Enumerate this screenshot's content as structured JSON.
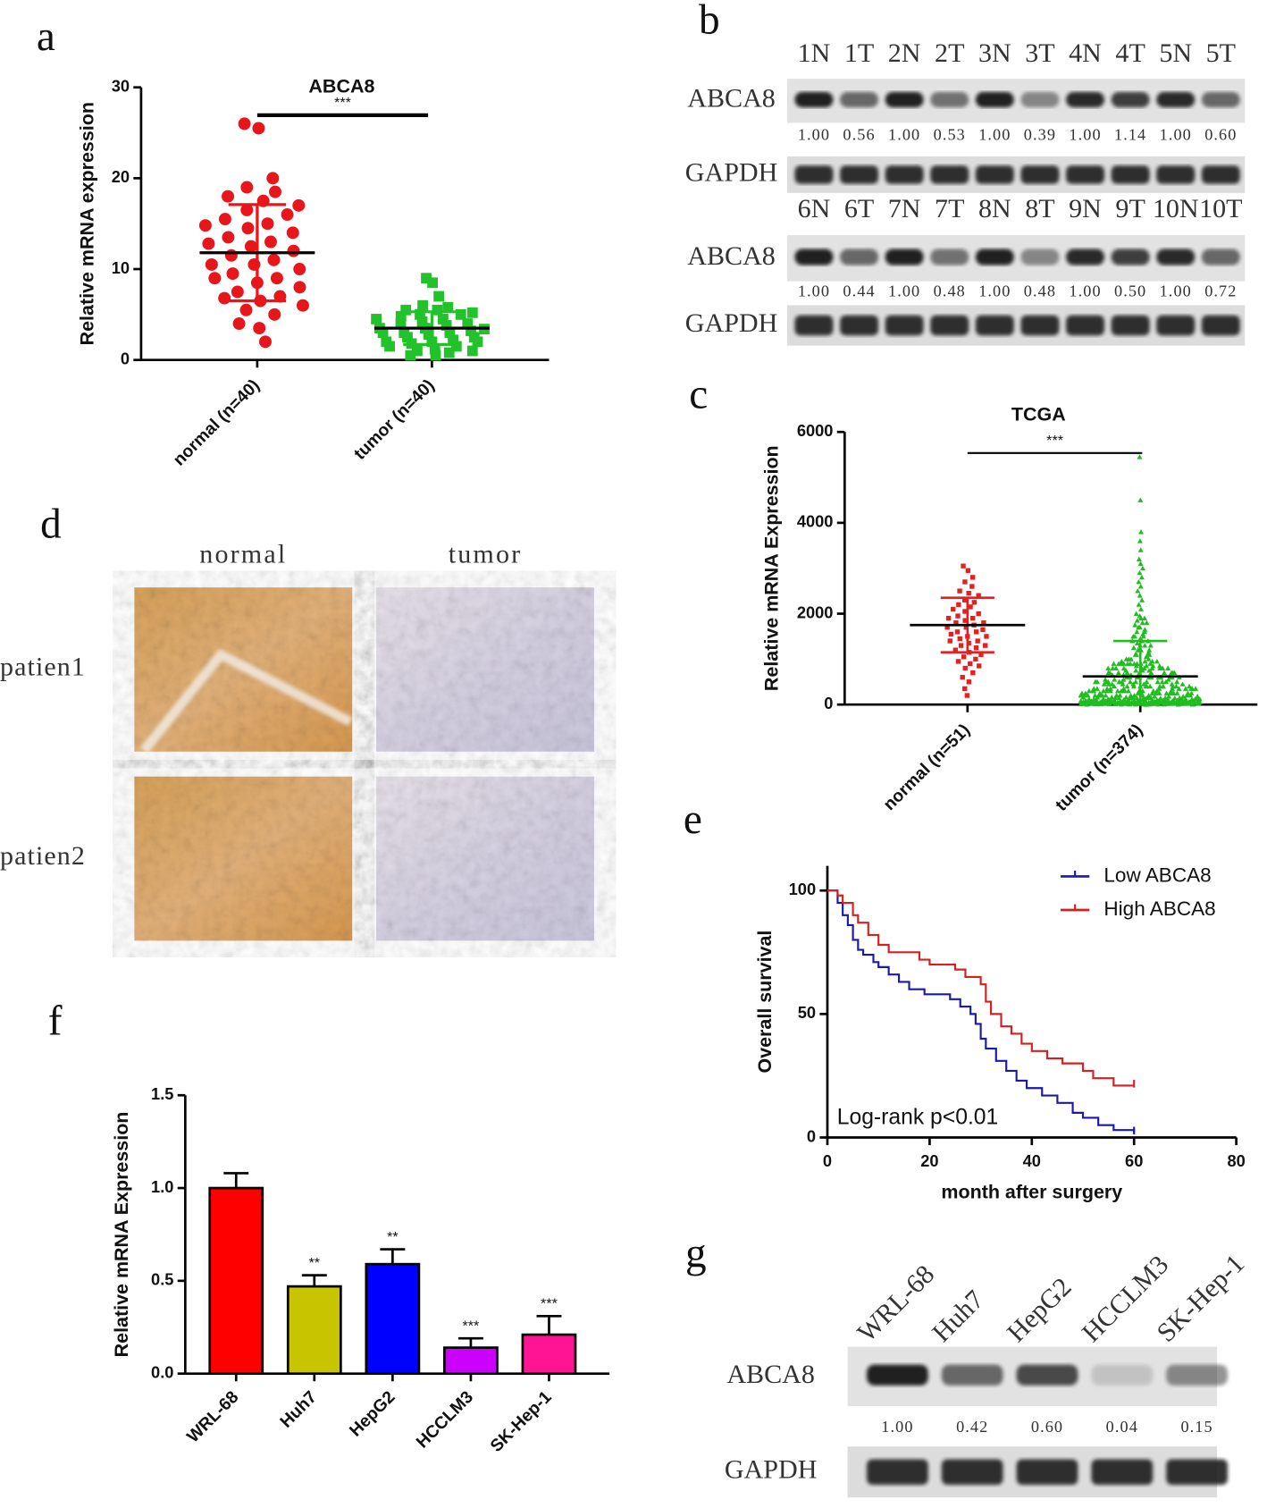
{
  "chart_data": [
    {
      "type": "dotplot",
      "panel_label": "a",
      "title": "ABCA8",
      "significance": "***",
      "ylabel": "Relative mRNA expression",
      "ylim": [
        0,
        30
      ],
      "yticks": [
        0,
        10,
        20,
        30
      ],
      "groups": [
        {
          "name": "normal (n=40)",
          "color": "#e8161b",
          "marker": "circle",
          "mean": 11.8,
          "sd": 5.3,
          "values": [
            26,
            25.5,
            20,
            19,
            18.5,
            18,
            17.5,
            17,
            16.5,
            16,
            15.5,
            15,
            14.8,
            14.5,
            14,
            13.5,
            13,
            12.8,
            12.5,
            12,
            11.5,
            11,
            10.5,
            10.5,
            10,
            9.5,
            9,
            9,
            8.5,
            8,
            7.5,
            7,
            6.8,
            6.5,
            6,
            5.5,
            5,
            4,
            3.5,
            2
          ]
        },
        {
          "name": "tumor (n=40)",
          "color": "#22c32a",
          "marker": "square",
          "mean": 3.5,
          "sd": 1.8,
          "values": [
            9,
            8.5,
            7,
            6,
            5.8,
            5.5,
            5.5,
            5.2,
            5,
            5,
            4.8,
            4.5,
            4.5,
            4.2,
            4,
            4,
            3.8,
            3.5,
            3.5,
            3.2,
            3,
            3,
            3,
            2.8,
            2.5,
            2.5,
            2.2,
            2,
            2,
            2,
            1.8,
            1.5,
            1.5,
            1.2,
            1,
            1,
            0.8,
            0.5,
            0.5,
            3.4
          ]
        }
      ]
    },
    {
      "type": "dotplot",
      "panel_label": "c",
      "title": "TCGA",
      "significance": "***",
      "ylabel": "Relative  mRNA Expression",
      "ylim": [
        0,
        6000
      ],
      "yticks": [
        0,
        2000,
        4000,
        6000
      ],
      "groups": [
        {
          "name": "normal (n=51)",
          "color": "#e62020",
          "marker": "square",
          "mean": 1750,
          "sd": 600,
          "values": [
            3050,
            2950,
            2800,
            2700,
            2600,
            2500,
            2450,
            2400,
            2300,
            2250,
            2200,
            2150,
            2100,
            2050,
            2000,
            1950,
            1900,
            1900,
            1850,
            1800,
            1800,
            1750,
            1700,
            1700,
            1650,
            1600,
            1600,
            1550,
            1500,
            1500,
            1450,
            1400,
            1400,
            1350,
            1300,
            1300,
            1250,
            1200,
            1150,
            1100,
            1050,
            1000,
            950,
            900,
            850,
            800,
            700,
            600,
            500,
            350,
            200
          ]
        },
        {
          "name": "tumor (n=374)",
          "color": "#1fbd1f",
          "marker": "triangle",
          "mean": 620,
          "sd": 780,
          "values": [
            5450,
            4500,
            3800,
            3600,
            3400,
            3200,
            3100,
            3000,
            2900,
            2800,
            2700,
            2600,
            2500,
            2400,
            2300,
            2200,
            2100,
            2000,
            1950,
            1900,
            1850,
            1800,
            1750,
            1700,
            1650,
            1600,
            1550,
            1500,
            1450,
            1400,
            1350,
            1300,
            1250,
            1200,
            1150,
            1100,
            1050,
            1000,
            1900,
            1800,
            1700,
            1600,
            1500,
            1400,
            1300,
            1200,
            1100,
            1000,
            950,
            900,
            850,
            800,
            750,
            700,
            650,
            600,
            550,
            500,
            1500,
            1400,
            1300,
            1200,
            1100,
            1000,
            900,
            800,
            700,
            600,
            500,
            450,
            400,
            350,
            300,
            250,
            200,
            150,
            100,
            50,
            950,
            900,
            850,
            800,
            750,
            700,
            650,
            600,
            550,
            500,
            450,
            400,
            350,
            300,
            250,
            200,
            150,
            100,
            50,
            20,
            950,
            900,
            850,
            800,
            750,
            700,
            650,
            600,
            550,
            500,
            450,
            400,
            350,
            300,
            250,
            200,
            150,
            100,
            50,
            20,
            950,
            900,
            850,
            800,
            750,
            700,
            650,
            600,
            550,
            500,
            450,
            400,
            350,
            300,
            250,
            200,
            150,
            100,
            50,
            20,
            900,
            800,
            700,
            600,
            500,
            450,
            400,
            350,
            300,
            250,
            200,
            180,
            160,
            140,
            120,
            100,
            80,
            60,
            40,
            20,
            900,
            800,
            700,
            600,
            500,
            450,
            400,
            350,
            300,
            250,
            200,
            180,
            160,
            140,
            120,
            100,
            80,
            60,
            40,
            20,
            900,
            800,
            700,
            600,
            500,
            450,
            400,
            350,
            300,
            250,
            200,
            180,
            160,
            140,
            120,
            100,
            80,
            60,
            40,
            20,
            900,
            800,
            700,
            600,
            500,
            450,
            400,
            350,
            300,
            250,
            200,
            180,
            160,
            140,
            120,
            100,
            80,
            60,
            40,
            20,
            600,
            500,
            400,
            350,
            300,
            250,
            200,
            150,
            120,
            100,
            90,
            80,
            70,
            60,
            50,
            40,
            30,
            20,
            10,
            5,
            600,
            500,
            400,
            350,
            300,
            250,
            200,
            150,
            120,
            100,
            90,
            80,
            70,
            60,
            50,
            40,
            30,
            20,
            10,
            5,
            600,
            500,
            400,
            350,
            300,
            250,
            200,
            150,
            120,
            100,
            90,
            80,
            70,
            60,
            50,
            40,
            30,
            20,
            10,
            5,
            600,
            500,
            400,
            350,
            300,
            250,
            200,
            150,
            120,
            100,
            90,
            80,
            70,
            60,
            50,
            40,
            30,
            20,
            10,
            5,
            300,
            250,
            200,
            150,
            120,
            100,
            80,
            70,
            60,
            50,
            45,
            40,
            35,
            30,
            25,
            20,
            15,
            10,
            5,
            2,
            300,
            250,
            200,
            150,
            120,
            100,
            80,
            70,
            60,
            50,
            45,
            40,
            35,
            30,
            25,
            20,
            15,
            10,
            5,
            2,
            300,
            250,
            200,
            150,
            120,
            100,
            80,
            70,
            60,
            50,
            45,
            40,
            35,
            30,
            25,
            20,
            15,
            10,
            5,
            2,
            1200,
            1100,
            1000,
            900,
            800,
            700,
            600,
            500,
            400,
            300,
            200,
            100,
            50,
            30,
            10,
            0
          ]
        }
      ]
    },
    {
      "type": "line",
      "panel_label": "e",
      "xlabel": "month after surgery",
      "ylabel": "Overall survival",
      "annotation": "Log-rank p<0.01",
      "legend": "top-right",
      "xlim": [
        0,
        80
      ],
      "xticks": [
        0,
        20,
        40,
        60,
        80
      ],
      "ylim": [
        0,
        110
      ],
      "yticks": [
        0,
        50,
        100
      ],
      "series": [
        {
          "name": "Low ABCA8",
          "color": "#1a1aa8",
          "x": [
            0,
            2,
            2,
            3,
            3,
            4,
            4,
            5,
            5,
            6,
            6,
            7,
            7,
            9,
            9,
            10,
            10,
            12,
            12,
            14,
            14,
            16,
            16,
            19,
            19,
            24,
            24,
            26,
            26,
            28,
            28,
            29,
            29,
            30,
            30,
            31,
            31,
            33,
            33,
            35,
            35,
            37,
            37,
            39,
            39,
            42,
            42,
            45,
            45,
            48,
            48,
            50,
            50,
            53,
            53,
            56,
            56,
            60,
            60
          ],
          "values": [
            100,
            100,
            95,
            95,
            90,
            90,
            86,
            86,
            80,
            80,
            76,
            76,
            74,
            74,
            71,
            71,
            69,
            69,
            66,
            66,
            63,
            63,
            60,
            60,
            58,
            58,
            56,
            56,
            53,
            53,
            50,
            50,
            46,
            46,
            40,
            40,
            36,
            36,
            31,
            31,
            27,
            27,
            23,
            23,
            20,
            20,
            17,
            17,
            14,
            14,
            10,
            10,
            8,
            8,
            5,
            5,
            3,
            3,
            2
          ]
        },
        {
          "name": "High ABCA8",
          "color": "#d42020",
          "x": [
            0,
            2,
            2,
            3,
            3,
            5,
            5,
            6,
            6,
            8,
            8,
            10,
            10,
            12,
            12,
            18,
            18,
            20,
            20,
            25,
            25,
            27,
            27,
            30,
            30,
            31,
            31,
            32,
            32,
            34,
            34,
            36,
            36,
            38,
            38,
            40,
            40,
            43,
            43,
            46,
            46,
            50,
            50,
            52,
            52,
            56,
            56,
            60
          ],
          "values": [
            100,
            100,
            98,
            98,
            95,
            95,
            90,
            90,
            87,
            87,
            82,
            82,
            78,
            78,
            75,
            75,
            72,
            72,
            70,
            70,
            68,
            68,
            65,
            65,
            62,
            62,
            55,
            55,
            50,
            50,
            45,
            45,
            42,
            42,
            38,
            38,
            35,
            35,
            32,
            32,
            30,
            30,
            27,
            27,
            24,
            24,
            21,
            21
          ]
        }
      ]
    },
    {
      "type": "bar",
      "panel_label": "f",
      "ylabel": "Relative mRNA Expression",
      "ylim": [
        0,
        1.5
      ],
      "yticks": [
        {
          "value": 0,
          "label": "0.0"
        },
        0.5,
        {
          "value": 1,
          "label": "1.0"
        },
        1.5
      ],
      "categories": [
        "WRL-68",
        "Huh7",
        "HepG2",
        "HCCLM3",
        "SK-Hep-1"
      ],
      "values": [
        1.0,
        0.47,
        0.59,
        0.14,
        0.21
      ],
      "errors": [
        0.08,
        0.06,
        0.08,
        0.05,
        0.1
      ],
      "colors": [
        "#ff0000",
        "#c9c400",
        "#0000ff",
        "#cc00ff",
        "#ff1493"
      ],
      "significance": [
        null,
        "**",
        "**",
        "***",
        "***"
      ]
    }
  ],
  "blots": [
    {
      "panel_label": "b",
      "target": "ABCA8",
      "control": "GAPDH",
      "rows": [
        {
          "lanes": [
            "1N",
            "1T",
            "2N",
            "2T",
            "3N",
            "3T",
            "4N",
            "4T",
            "5N",
            "5T"
          ],
          "ratios": [
            "1.00",
            "0.56",
            "1.00",
            "0.53",
            "1.00",
            "0.39",
            "1.00",
            "1.14",
            "1.00",
            "0.60"
          ]
        },
        {
          "lanes": [
            "6N",
            "6T",
            "7N",
            "7T",
            "8N",
            "8T",
            "9N",
            "9T",
            "10N",
            "10T"
          ],
          "ratios": [
            "1.00",
            "0.44",
            "1.00",
            "0.48",
            "1.00",
            "0.48",
            "1.00",
            "0.50",
            "1.00",
            "0.72"
          ]
        }
      ]
    },
    {
      "panel_label": "g",
      "target": "ABCA8",
      "control": "GAPDH",
      "rows": [
        {
          "lanes": [
            "WRL-68",
            "Huh7",
            "HepG2",
            "HCCLM3",
            "SK-Hep-1"
          ],
          "ratios": [
            "1.00",
            "0.42",
            "0.60",
            "0.04",
            "0.15"
          ]
        }
      ]
    }
  ],
  "ihc": {
    "panel_label": "d",
    "columns": [
      "normal",
      "tumor"
    ],
    "rows": [
      "patien1",
      "patien2"
    ]
  }
}
